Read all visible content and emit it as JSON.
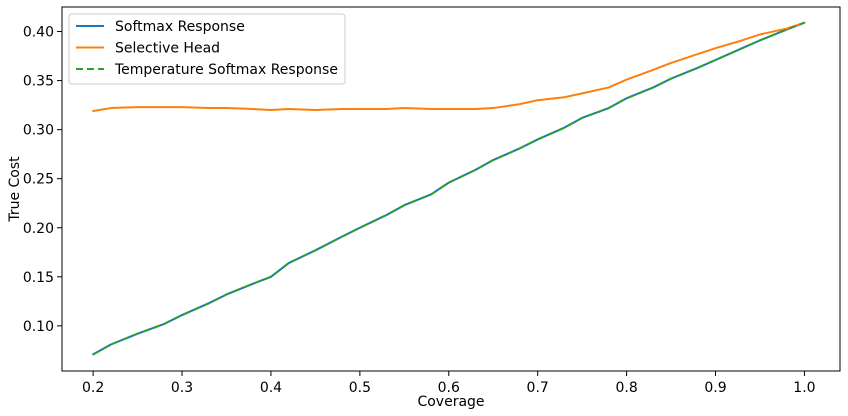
{
  "chart_data": {
    "type": "line",
    "title": "",
    "xlabel": "Coverage",
    "ylabel": "True Cost",
    "xlim": [
      0.165,
      1.04
    ],
    "ylim": [
      0.054,
      0.425
    ],
    "xticks": [
      0.2,
      0.3,
      0.4,
      0.5,
      0.6,
      0.7,
      0.8,
      0.9,
      1.0
    ],
    "xtick_labels": [
      "0.2",
      "0.3",
      "0.4",
      "0.5",
      "0.6",
      "0.7",
      "0.8",
      "0.9",
      "1.0"
    ],
    "yticks": [
      0.1,
      0.15,
      0.2,
      0.25,
      0.3,
      0.35,
      0.4
    ],
    "ytick_labels": [
      "0.10",
      "0.15",
      "0.20",
      "0.25",
      "0.30",
      "0.35",
      "0.40"
    ],
    "grid": false,
    "legend_position": "upper-left",
    "series": [
      {
        "name": "Softmax Response",
        "color": "#1f77b4",
        "style": "solid",
        "x": [
          0.2,
          0.22,
          0.25,
          0.28,
          0.3,
          0.33,
          0.35,
          0.38,
          0.4,
          0.42,
          0.45,
          0.48,
          0.5,
          0.53,
          0.55,
          0.58,
          0.6,
          0.63,
          0.65,
          0.68,
          0.7,
          0.73,
          0.75,
          0.78,
          0.8,
          0.83,
          0.85,
          0.88,
          0.9,
          0.93,
          0.95,
          0.98,
          1.0
        ],
        "y": [
          0.071,
          0.081,
          0.092,
          0.102,
          0.111,
          0.123,
          0.132,
          0.143,
          0.15,
          0.164,
          0.177,
          0.191,
          0.2,
          0.213,
          0.223,
          0.234,
          0.246,
          0.259,
          0.269,
          0.281,
          0.29,
          0.302,
          0.312,
          0.322,
          0.332,
          0.343,
          0.352,
          0.363,
          0.371,
          0.383,
          0.391,
          0.402,
          0.409
        ]
      },
      {
        "name": "Selective Head",
        "color": "#ff7f0e",
        "style": "solid",
        "x": [
          0.2,
          0.22,
          0.25,
          0.28,
          0.3,
          0.33,
          0.35,
          0.38,
          0.4,
          0.42,
          0.45,
          0.48,
          0.5,
          0.53,
          0.55,
          0.58,
          0.6,
          0.63,
          0.65,
          0.68,
          0.7,
          0.73,
          0.75,
          0.78,
          0.8,
          0.83,
          0.85,
          0.88,
          0.9,
          0.93,
          0.95,
          0.98,
          1.0
        ],
        "y": [
          0.319,
          0.322,
          0.323,
          0.323,
          0.323,
          0.322,
          0.322,
          0.321,
          0.32,
          0.321,
          0.32,
          0.321,
          0.321,
          0.321,
          0.322,
          0.321,
          0.321,
          0.321,
          0.322,
          0.326,
          0.33,
          0.333,
          0.337,
          0.343,
          0.351,
          0.361,
          0.368,
          0.377,
          0.383,
          0.391,
          0.397,
          0.403,
          0.409
        ]
      },
      {
        "name": "Temperature Softmax Response",
        "color": "#2ca02c",
        "style": "dashed",
        "x": [
          0.2,
          0.22,
          0.25,
          0.28,
          0.3,
          0.33,
          0.35,
          0.38,
          0.4,
          0.42,
          0.45,
          0.48,
          0.5,
          0.53,
          0.55,
          0.58,
          0.6,
          0.63,
          0.65,
          0.68,
          0.7,
          0.73,
          0.75,
          0.78,
          0.8,
          0.83,
          0.85,
          0.88,
          0.9,
          0.93,
          0.95,
          0.98,
          1.0
        ],
        "y": [
          0.071,
          0.081,
          0.092,
          0.102,
          0.111,
          0.123,
          0.132,
          0.143,
          0.15,
          0.164,
          0.177,
          0.191,
          0.2,
          0.213,
          0.223,
          0.234,
          0.246,
          0.259,
          0.269,
          0.281,
          0.29,
          0.302,
          0.312,
          0.322,
          0.332,
          0.343,
          0.352,
          0.363,
          0.371,
          0.383,
          0.391,
          0.402,
          0.409
        ]
      }
    ]
  }
}
